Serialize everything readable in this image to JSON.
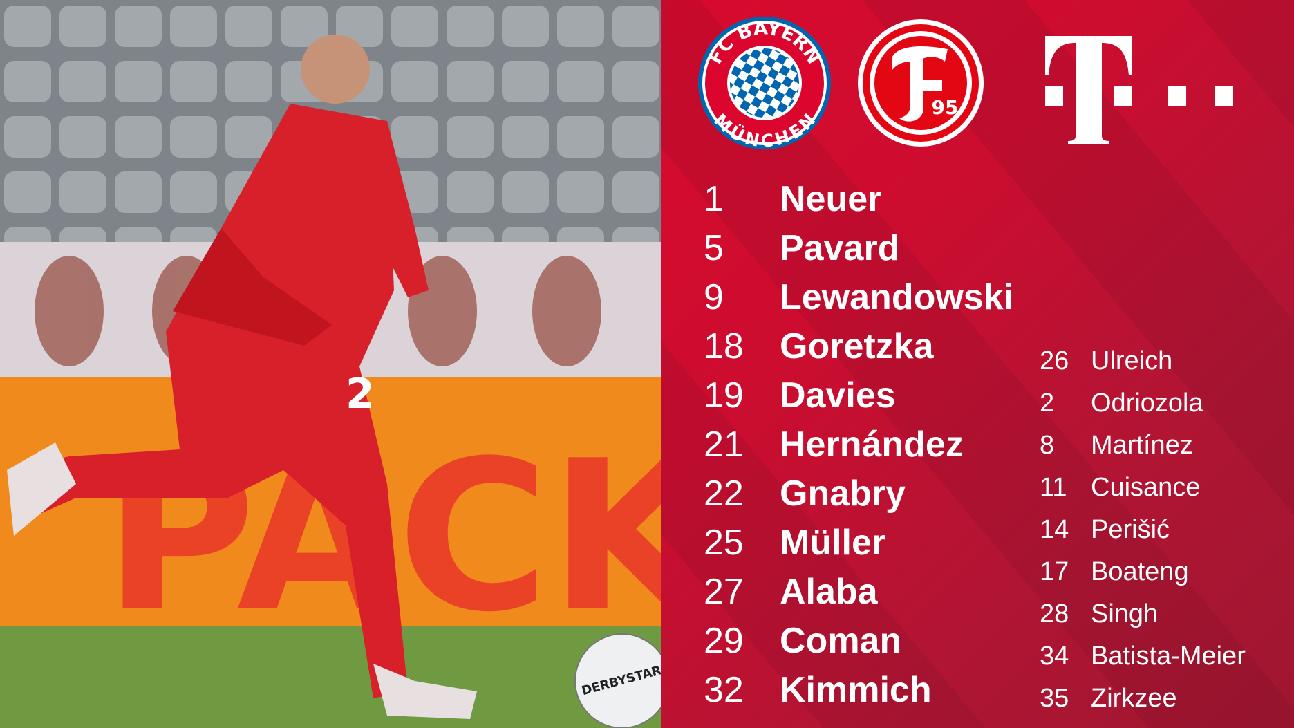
{
  "logos": {
    "bayern": {
      "top_text": "FC BAYERN",
      "bottom_text": "MÜNCHEN"
    },
    "fortuna": {
      "letter": "F",
      "number": "95"
    },
    "telekom": {
      "letter": "T"
    }
  },
  "colors": {
    "panel_red": "#d80a2e",
    "bayern_blue": "#0066b2",
    "white": "#ffffff"
  },
  "starting_lineup": [
    {
      "number": "1",
      "name": "Neuer"
    },
    {
      "number": "5",
      "name": "Pavard"
    },
    {
      "number": "9",
      "name": "Lewandowski"
    },
    {
      "number": "18",
      "name": "Goretzka"
    },
    {
      "number": "19",
      "name": "Davies"
    },
    {
      "number": "21",
      "name": "Hernández"
    },
    {
      "number": "22",
      "name": "Gnabry"
    },
    {
      "number": "25",
      "name": "Müller"
    },
    {
      "number": "27",
      "name": "Alaba"
    },
    {
      "number": "29",
      "name": "Coman"
    },
    {
      "number": "32",
      "name": "Kimmich"
    }
  ],
  "substitutes": [
    {
      "number": "26",
      "name": "Ulreich"
    },
    {
      "number": "2",
      "name": "Odriozola"
    },
    {
      "number": "8",
      "name": "Martínez"
    },
    {
      "number": "11",
      "name": "Cuisance"
    },
    {
      "number": "14",
      "name": "Perišić"
    },
    {
      "number": "17",
      "name": "Boateng"
    },
    {
      "number": "28",
      "name": "Singh"
    },
    {
      "number": "34",
      "name": "Batista-Meier"
    },
    {
      "number": "35",
      "name": "Zirkzee"
    }
  ],
  "photo": {
    "board_text": "PACKST",
    "ball_text": "DERBYSTAR",
    "shorts_number": "2"
  }
}
